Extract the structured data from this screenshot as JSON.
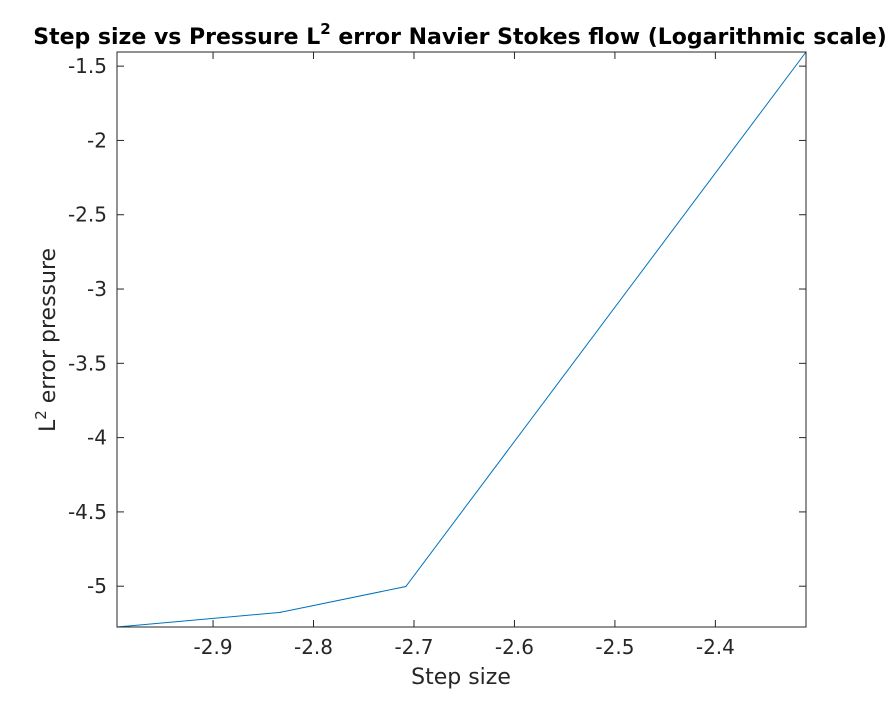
{
  "chart_data": {
    "type": "line",
    "title": "Step size vs Pressure L",
    "title_sup": "2",
    "title_suffix": " error Navier Stokes flow (Logarithmic scale)",
    "xlabel": "Step size",
    "ylabel": "L",
    "ylabel_sup": "2",
    "ylabel_suffix": " error pressure",
    "xlim": [
      -2.9956,
      -2.3098
    ],
    "ylim": [
      -5.2746,
      -1.4048
    ],
    "xticks": [
      -2.9,
      -2.8,
      -2.7,
      -2.6,
      -2.5,
      -2.4
    ],
    "xtick_labels": [
      "-2.9",
      "-2.8",
      "-2.7",
      "-2.6",
      "-2.5",
      "-2.4"
    ],
    "yticks": [
      -1.5,
      -2,
      -2.5,
      -3,
      -3.5,
      -4,
      -4.5,
      -5
    ],
    "ytick_labels": [
      "-1.5",
      "-2",
      "-2.5",
      "-3",
      "-3.5",
      "-4",
      "-4.5",
      "-5"
    ],
    "grid": false,
    "series": [
      {
        "color": "#0072bd",
        "x": [
          -2.9956,
          -2.8332,
          -2.7081,
          -2.3098
        ],
        "y": [
          -5.2746,
          -5.1762,
          -5.0022,
          -1.4048
        ]
      }
    ]
  }
}
